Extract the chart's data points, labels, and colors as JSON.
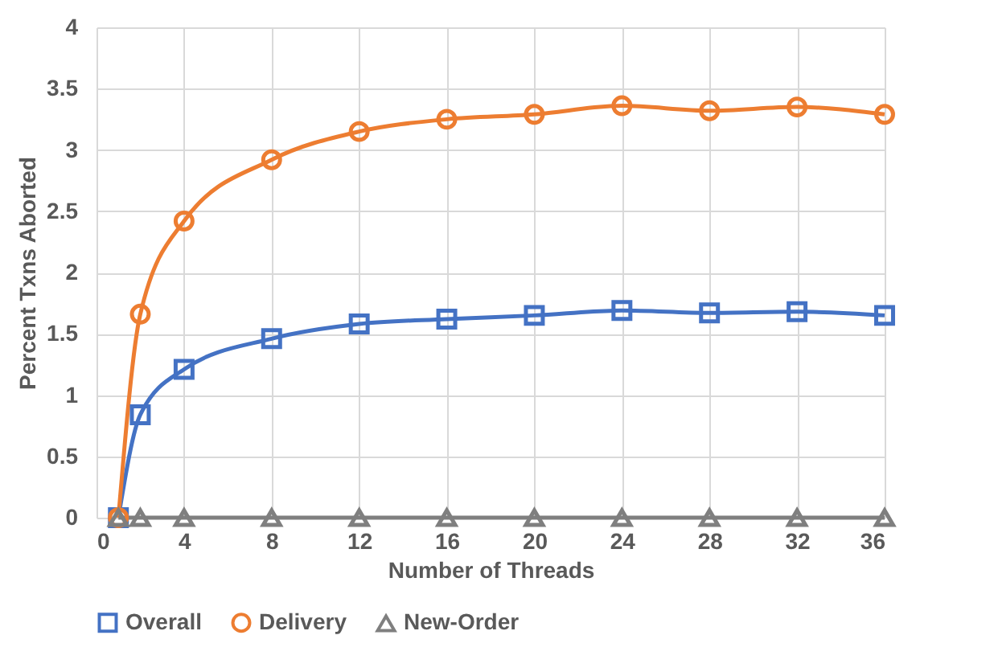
{
  "chart_data": {
    "type": "line",
    "xlabel": "Number of Threads",
    "ylabel": "Percent Txns Aborted",
    "x": [
      1,
      2,
      4,
      8,
      12,
      16,
      20,
      24,
      28,
      32,
      36
    ],
    "series": [
      {
        "name": "Overall",
        "color": "#4472c4",
        "marker": "square",
        "values": [
          0,
          0.84,
          1.21,
          1.46,
          1.58,
          1.62,
          1.65,
          1.69,
          1.67,
          1.68,
          1.65
        ]
      },
      {
        "name": "Delivery",
        "color": "#ed7d31",
        "marker": "circle",
        "values": [
          0,
          1.66,
          2.42,
          2.92,
          3.15,
          3.25,
          3.29,
          3.36,
          3.32,
          3.35,
          3.29
        ]
      },
      {
        "name": "New-Order",
        "color": "#7f7f7f",
        "marker": "triangle",
        "values": [
          0,
          0,
          0,
          0,
          0,
          0,
          0,
          0,
          0,
          0,
          0
        ]
      }
    ],
    "xlim": [
      0,
      36
    ],
    "xticks": [
      0,
      4,
      8,
      12,
      16,
      20,
      24,
      28,
      32,
      36
    ],
    "ylim": [
      0,
      4
    ],
    "yticks": [
      0,
      0.5,
      1,
      1.5,
      2,
      2.5,
      3,
      3.5,
      4
    ],
    "grid": true,
    "legend": "bottom"
  }
}
